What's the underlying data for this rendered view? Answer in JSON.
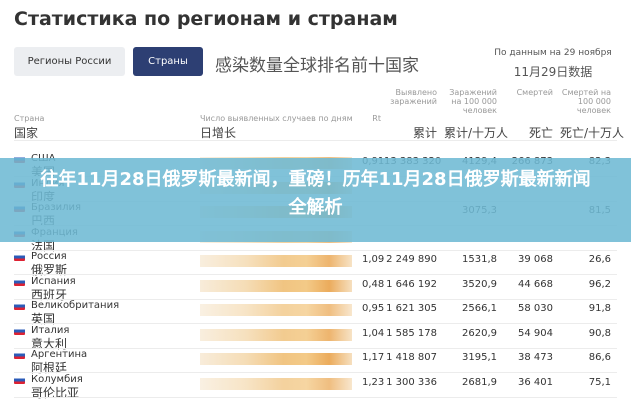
{
  "header": {
    "title": "Статистика по регионам и странам",
    "tabs": [
      "Регионы России",
      "Страны"
    ],
    "subtitle": "感染数量全球排名前十国家",
    "date": "По данным на 29 ноября",
    "date_cn": "11月29日数据"
  },
  "columns": [
    {
      "ru": "Страна",
      "cn": "国家"
    },
    {
      "ru": "Число выявленных случаев по дням",
      "cn": "日增长"
    },
    {
      "ru": "Rt"
    },
    {
      "ru": "Выявлено заражений",
      "cn": "累计"
    },
    {
      "ru": "Заражений на 100 000 человек",
      "cn": "累计/十万人"
    },
    {
      "ru": "Смертей",
      "cn": "死亡"
    },
    {
      "ru": "Смертей на 100 000 человек",
      "cn": "死亡/十万人"
    }
  ],
  "rows": [
    {
      "name": "США",
      "cn": "美国",
      "rt": "0,91",
      "total": "13 383 320",
      "per100k": "4129,4",
      "deaths": "266 873",
      "dper100k": "82,3"
    },
    {
      "name": "Индия",
      "cn": "印度"
    },
    {
      "name": "Бразилия",
      "cn": "巴西",
      "per100k": "3075,3",
      "dper100k": "81,5"
    },
    {
      "name": "Франция",
      "cn": "法国"
    },
    {
      "name": "Россия",
      "cn": "俄罗斯",
      "rt": "1,09",
      "total": "2 249 890",
      "per100k": "1531,8",
      "deaths": "39 068",
      "dper100k": "26,6"
    },
    {
      "name": "Испания",
      "cn": "西班牙",
      "rt": "0,48",
      "total": "1 646 192",
      "per100k": "3520,9",
      "deaths": "44 668",
      "dper100k": "96,2"
    },
    {
      "name": "Великобритания",
      "cn": "英国",
      "rt": "0,95",
      "total": "1 621 305",
      "per100k": "2566,1",
      "deaths": "58 030",
      "dper100k": "91,8"
    },
    {
      "name": "Италия",
      "cn": "意大利",
      "rt": "1,04",
      "total": "1 585 178",
      "per100k": "2620,9",
      "deaths": "54 904",
      "dper100k": "90,8"
    },
    {
      "name": "Аргентина",
      "cn": "阿根廷",
      "rt": "1,17",
      "total": "1 418 807",
      "per100k": "3195,1",
      "deaths": "38 473",
      "dper100k": "86,6"
    },
    {
      "name": "Колумбия",
      "cn": "哥伦比亚",
      "rt": "1,23",
      "total": "1 300 336",
      "per100k": "2681,9",
      "deaths": "36 401",
      "dper100k": "75,1"
    }
  ],
  "banner": "往年11月28日俄罗斯最新闻，重磅！历年11月28日俄罗斯最新新闻全解析"
}
